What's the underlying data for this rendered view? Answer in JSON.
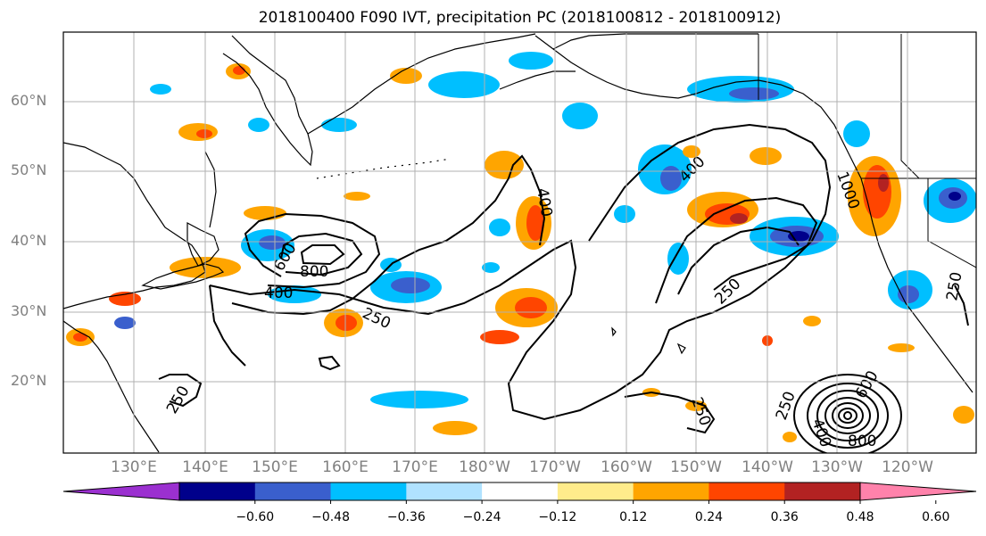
{
  "title": "2018100400 F090 IVT, precipitation PC (2018100812 - 2018100912)",
  "map": {
    "lat_labels": [
      "60°N",
      "50°N",
      "40°N",
      "30°N",
      "20°N"
    ],
    "lon_labels": [
      "130°E",
      "140°E",
      "150°E",
      "160°E",
      "170°E",
      "180°W",
      "170°W",
      "160°W",
      "150°W",
      "140°W",
      "130°W",
      "120°W"
    ],
    "contour_labels": [
      "400",
      "400",
      "600",
      "800",
      "400",
      "250",
      "250",
      "250",
      "250",
      "250",
      "400",
      "250",
      "600",
      "800",
      "1000"
    ]
  },
  "colorbar": {
    "ticks": [
      "−0.60",
      "−0.48",
      "−0.36",
      "−0.24",
      "−0.12",
      "0.12",
      "0.24",
      "0.36",
      "0.48",
      "0.60"
    ],
    "colors": [
      "#9b30d0",
      "#00008b",
      "#3a5fcd",
      "#00bfff",
      "#b0e2ff",
      "#ffffff",
      "#ffec8b",
      "#ffa500",
      "#ff4500",
      "#b22222",
      "#ff82ab"
    ]
  }
}
